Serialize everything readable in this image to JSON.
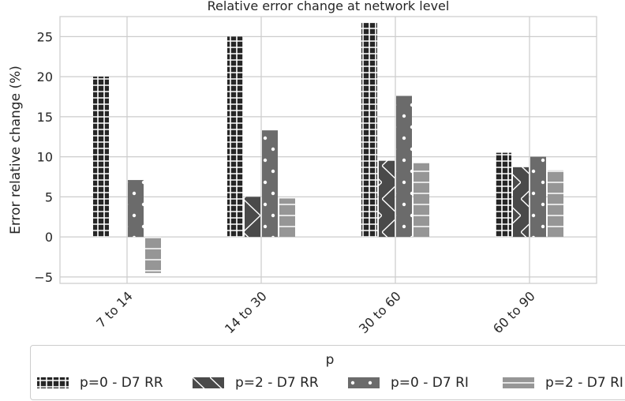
{
  "chart_data": {
    "type": "bar",
    "title": "Relative error change at network level",
    "xlabel": "",
    "ylabel": "Error relative change (%)",
    "ylim": [
      -5.8,
      27.5
    ],
    "yticks": [
      -5,
      0,
      5,
      10,
      15,
      20,
      25
    ],
    "ytick_labels": [
      "−5",
      "0",
      "5",
      "10",
      "15",
      "20",
      "25"
    ],
    "categories": [
      "7 to 14",
      "14 to 30",
      "30 to 60",
      "60 to 90"
    ],
    "grid": true,
    "legend_position": "bottom",
    "legend_title": "p",
    "series": [
      {
        "name": "p=0 - D7 RR",
        "color": "#262626",
        "hatch": "grid",
        "values": [
          20.0,
          25.0,
          26.7,
          10.5
        ]
      },
      {
        "name": "p=2 - D7 RR",
        "color": "#4a4a4a",
        "hatch": "cross",
        "values": [
          null,
          5.0,
          9.5,
          8.7
        ]
      },
      {
        "name": "p=0 - D7 RI",
        "color": "#6b6b6b",
        "hatch": "dots",
        "values": [
          7.1,
          13.3,
          17.6,
          10.0
        ]
      },
      {
        "name": "p=2 - D7 RI",
        "color": "#969696",
        "hatch": "lines",
        "values": [
          -4.5,
          4.8,
          9.2,
          8.3
        ]
      }
    ]
  }
}
